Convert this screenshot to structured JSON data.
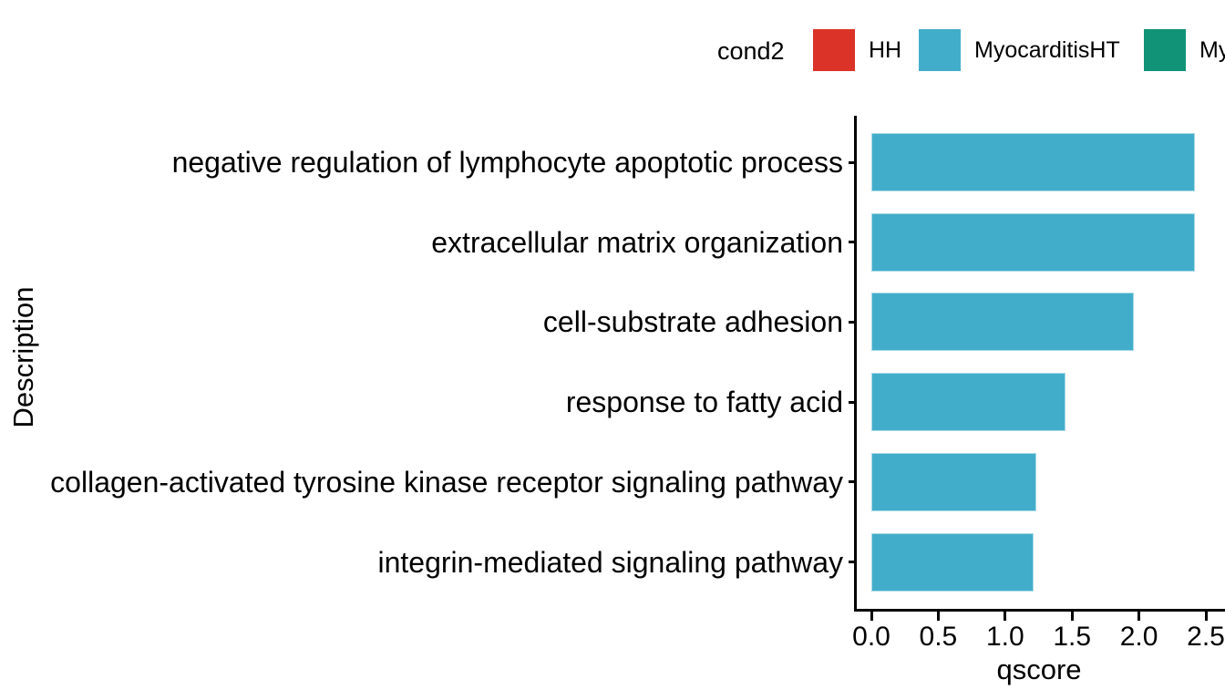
{
  "legend": {
    "title": "cond2",
    "items": [
      {
        "label": "HH",
        "color": "#db3327"
      },
      {
        "label": "MyocarditisHT",
        "color": "#42adcb"
      },
      {
        "label": "My",
        "color": "#109377"
      }
    ]
  },
  "chart_data": {
    "type": "bar",
    "orientation": "horizontal",
    "title": "",
    "xlabel": "qscore",
    "ylabel": "Description",
    "legend_title": "cond2",
    "legend_position": "top",
    "grid": false,
    "xlim": [
      0,
      2.5
    ],
    "x_tick_values": [
      0,
      0.5,
      1.0,
      1.5,
      2.0,
      2.5
    ],
    "x_tick_labels": [
      "0.0",
      "0.5",
      "1.0",
      "1.5",
      "2.0",
      "2.5"
    ],
    "categories": [
      "negative regulation of lymphocyte apoptotic process",
      "extracellular matrix organization",
      "cell-substrate adhesion",
      "response to fatty acid",
      "collagen-activated tyrosine kinase receptor signaling pathway",
      "integrin-mediated signaling pathway"
    ],
    "series": [
      {
        "name": "MyocarditisHT",
        "color": "#42adcb",
        "values": [
          2.42,
          2.42,
          1.96,
          1.45,
          1.23,
          1.21
        ]
      }
    ]
  }
}
